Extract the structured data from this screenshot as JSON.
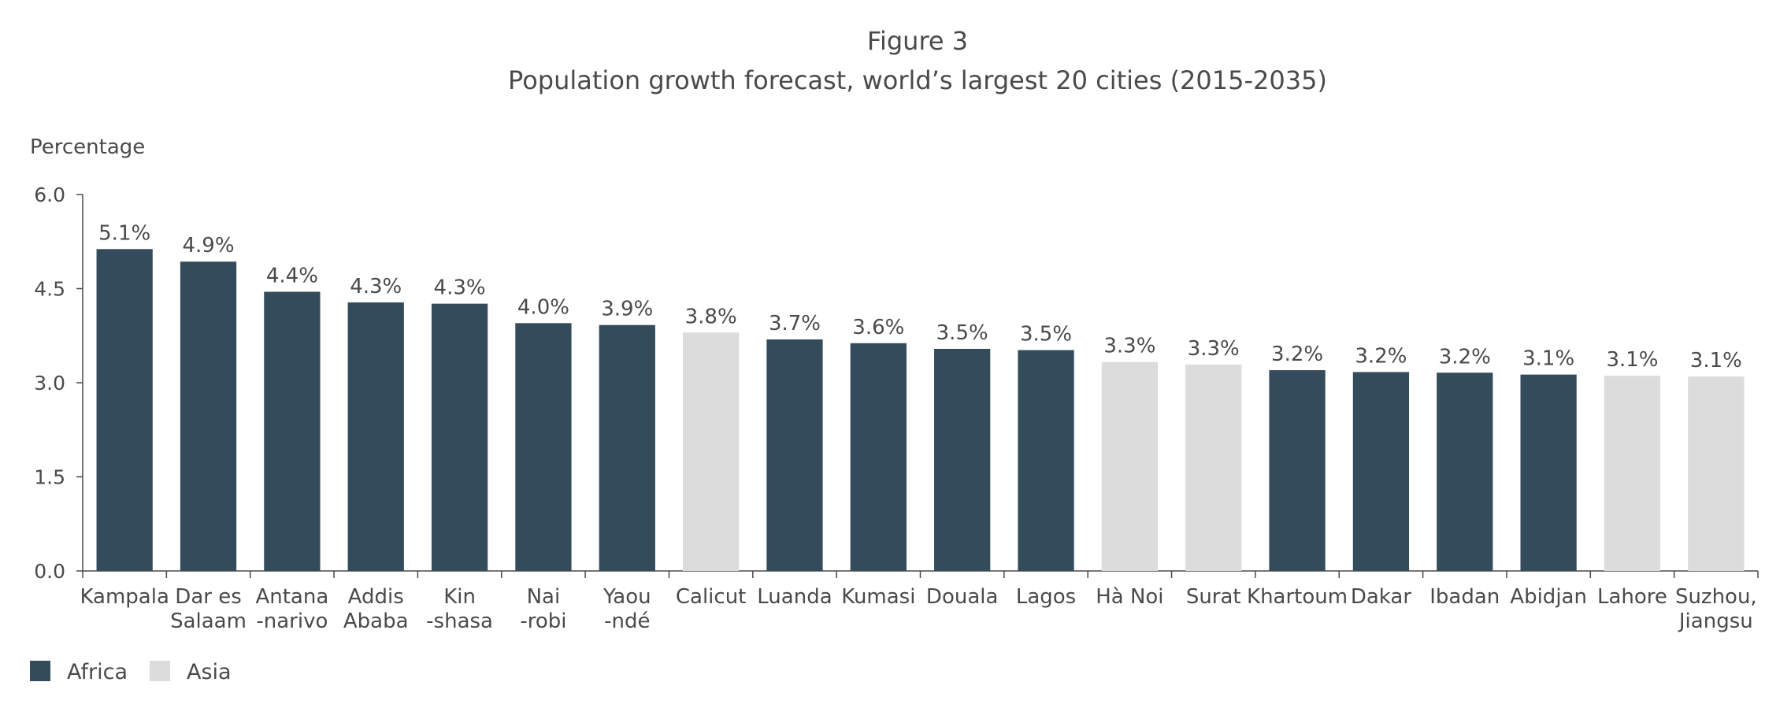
{
  "figure_label": "Figure 3",
  "title": "Population growth forecast, world’s largest 20 cities (2015-2035)",
  "ylabel": "Percentage",
  "colors": {
    "Africa": "#344b5b",
    "Asia": "#dcdcdc",
    "axis": "#4a4a4a"
  },
  "legend": [
    {
      "name": "Africa",
      "color": "#344b5b"
    },
    {
      "name": "Asia",
      "color": "#dcdcdc"
    }
  ],
  "chart_data": {
    "type": "bar",
    "title": "Population growth forecast, world’s largest 20 cities (2015-2035)",
    "xlabel": "",
    "ylabel": "Percentage",
    "ylim": [
      0,
      6
    ],
    "yticks": [
      "0.0",
      "1.5",
      "3.0",
      "4.5",
      "6.0"
    ],
    "grid": false,
    "legend_position": "bottom-left",
    "categories": [
      [
        "Kampala"
      ],
      [
        "Dar es",
        "Salaam"
      ],
      [
        "Antana",
        "-narivo"
      ],
      [
        "Addis",
        "Ababa"
      ],
      [
        "Kin",
        "-shasa"
      ],
      [
        "Nai",
        "-robi"
      ],
      [
        "Yaou",
        "-ndé"
      ],
      [
        "Calicut"
      ],
      [
        "Luanda"
      ],
      [
        "Kumasi"
      ],
      [
        "Douala"
      ],
      [
        "Lagos"
      ],
      [
        "Hà Noi"
      ],
      [
        "Surat"
      ],
      [
        "Khartoum"
      ],
      [
        "Dakar"
      ],
      [
        "Ibadan"
      ],
      [
        "Abidjan"
      ],
      [
        "Lahore"
      ],
      [
        "Suzhou,",
        "Jiangsu"
      ]
    ],
    "values": [
      5.13,
      4.93,
      4.45,
      4.28,
      4.26,
      3.95,
      3.92,
      3.8,
      3.69,
      3.63,
      3.54,
      3.52,
      3.33,
      3.29,
      3.2,
      3.17,
      3.16,
      3.13,
      3.11,
      3.1
    ],
    "data_labels": [
      "5.1%",
      "4.9%",
      "4.4%",
      "4.3%",
      "4.3%",
      "4.0%",
      "3.9%",
      "3.8%",
      "3.7%",
      "3.6%",
      "3.5%",
      "3.5%",
      "3.3%",
      "3.3%",
      "3.2%",
      "3.2%",
      "3.2%",
      "3.1%",
      "3.1%",
      "3.1%"
    ],
    "region": [
      "Africa",
      "Africa",
      "Africa",
      "Africa",
      "Africa",
      "Africa",
      "Africa",
      "Asia",
      "Africa",
      "Africa",
      "Africa",
      "Africa",
      "Asia",
      "Asia",
      "Africa",
      "Africa",
      "Africa",
      "Africa",
      "Asia",
      "Asia"
    ]
  }
}
